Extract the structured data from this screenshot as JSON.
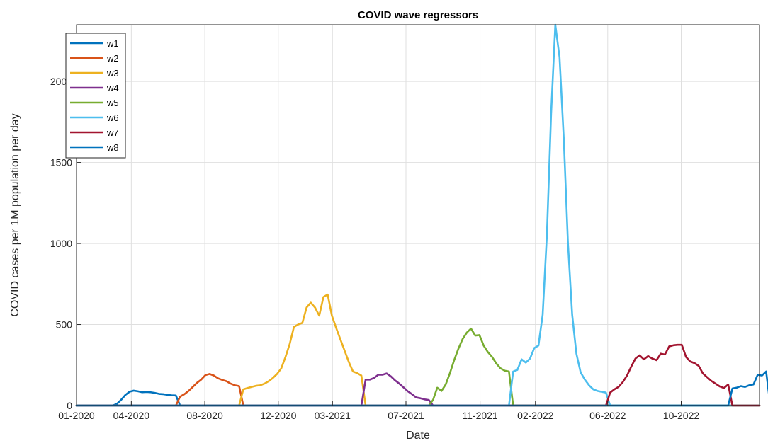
{
  "chart_data": {
    "type": "line",
    "title": "COVID wave regressors",
    "xlabel": "Date",
    "ylabel": "COVID cases per 1M population per day",
    "xlim": [
      "2020-01-01",
      "2023-02-08"
    ],
    "ylim": [
      0,
      2350
    ],
    "x_ticks": [
      "2020-01-01",
      "2020-04-01",
      "2020-08-01",
      "2020-12-01",
      "2021-03-01",
      "2021-07-01",
      "2021-11-01",
      "2022-02-01",
      "2022-06-01",
      "2022-10-01"
    ],
    "x_tick_labels": [
      "01-2020",
      "04-2020",
      "08-2020",
      "12-2020",
      "03-2021",
      "07-2021",
      "11-2021",
      "02-2022",
      "06-2022",
      "10-2022"
    ],
    "y_ticks": [
      0,
      500,
      1000,
      1500,
      2000
    ],
    "y_tick_labels": [
      "0",
      "500",
      "1000",
      "1500",
      "2000"
    ],
    "grid": true,
    "legend_position": "top-left",
    "series": [
      {
        "name": "w1",
        "color": "#0072BD",
        "points": [
          [
            "2020-01-01",
            0
          ],
          [
            "2020-03-01",
            0
          ],
          [
            "2020-03-08",
            10
          ],
          [
            "2020-03-15",
            35
          ],
          [
            "2020-03-22",
            65
          ],
          [
            "2020-03-29",
            85
          ],
          [
            "2020-04-05",
            92
          ],
          [
            "2020-04-12",
            88
          ],
          [
            "2020-04-19",
            82
          ],
          [
            "2020-04-26",
            84
          ],
          [
            "2020-05-03",
            82
          ],
          [
            "2020-05-10",
            78
          ],
          [
            "2020-05-17",
            72
          ],
          [
            "2020-05-24",
            70
          ],
          [
            "2020-05-31",
            66
          ],
          [
            "2020-06-07",
            63
          ],
          [
            "2020-06-14",
            62
          ],
          [
            "2020-06-21",
            0
          ],
          [
            "2023-02-08",
            0
          ]
        ]
      },
      {
        "name": "w2",
        "color": "#D95319",
        "points": [
          [
            "2020-01-01",
            0
          ],
          [
            "2020-06-14",
            0
          ],
          [
            "2020-06-21",
            55
          ],
          [
            "2020-06-28",
            70
          ],
          [
            "2020-07-05",
            90
          ],
          [
            "2020-07-12",
            115
          ],
          [
            "2020-07-19",
            140
          ],
          [
            "2020-07-26",
            160
          ],
          [
            "2020-08-02",
            188
          ],
          [
            "2020-08-09",
            195
          ],
          [
            "2020-08-16",
            185
          ],
          [
            "2020-08-23",
            168
          ],
          [
            "2020-08-30",
            158
          ],
          [
            "2020-09-06",
            150
          ],
          [
            "2020-09-13",
            135
          ],
          [
            "2020-09-20",
            125
          ],
          [
            "2020-09-27",
            120
          ],
          [
            "2020-10-04",
            0
          ],
          [
            "2023-02-08",
            0
          ]
        ]
      },
      {
        "name": "w3",
        "color": "#EDB120",
        "points": [
          [
            "2020-01-01",
            0
          ],
          [
            "2020-09-27",
            0
          ],
          [
            "2020-10-04",
            100
          ],
          [
            "2020-10-11",
            108
          ],
          [
            "2020-10-18",
            115
          ],
          [
            "2020-10-25",
            122
          ],
          [
            "2020-11-01",
            125
          ],
          [
            "2020-11-08",
            135
          ],
          [
            "2020-11-15",
            150
          ],
          [
            "2020-11-22",
            170
          ],
          [
            "2020-11-29",
            195
          ],
          [
            "2020-12-06",
            230
          ],
          [
            "2020-12-13",
            300
          ],
          [
            "2020-12-20",
            380
          ],
          [
            "2020-12-27",
            485
          ],
          [
            "2021-01-03",
            500
          ],
          [
            "2021-01-10",
            510
          ],
          [
            "2021-01-17",
            605
          ],
          [
            "2021-01-24",
            635
          ],
          [
            "2021-01-31",
            605
          ],
          [
            "2021-02-07",
            555
          ],
          [
            "2021-02-14",
            670
          ],
          [
            "2021-02-21",
            685
          ],
          [
            "2021-02-28",
            555
          ],
          [
            "2021-03-07",
            480
          ],
          [
            "2021-03-14",
            410
          ],
          [
            "2021-03-21",
            340
          ],
          [
            "2021-03-28",
            270
          ],
          [
            "2021-04-04",
            210
          ],
          [
            "2021-04-11",
            200
          ],
          [
            "2021-04-18",
            185
          ],
          [
            "2021-04-25",
            0
          ],
          [
            "2023-02-08",
            0
          ]
        ]
      },
      {
        "name": "w4",
        "color": "#7E2F8E",
        "points": [
          [
            "2020-01-01",
            0
          ],
          [
            "2021-04-18",
            0
          ],
          [
            "2021-04-25",
            160
          ],
          [
            "2021-05-02",
            160
          ],
          [
            "2021-05-09",
            170
          ],
          [
            "2021-05-16",
            190
          ],
          [
            "2021-05-23",
            190
          ],
          [
            "2021-05-30",
            198
          ],
          [
            "2021-06-06",
            180
          ],
          [
            "2021-06-13",
            155
          ],
          [
            "2021-06-20",
            135
          ],
          [
            "2021-06-27",
            112
          ],
          [
            "2021-07-04",
            88
          ],
          [
            "2021-07-11",
            70
          ],
          [
            "2021-07-18",
            50
          ],
          [
            "2021-07-25",
            45
          ],
          [
            "2021-08-01",
            38
          ],
          [
            "2021-08-08",
            34
          ],
          [
            "2021-08-15",
            0
          ],
          [
            "2023-02-08",
            0
          ]
        ]
      },
      {
        "name": "w5",
        "color": "#77AC30",
        "points": [
          [
            "2020-01-01",
            0
          ],
          [
            "2021-08-08",
            0
          ],
          [
            "2021-08-15",
            35
          ],
          [
            "2021-08-22",
            110
          ],
          [
            "2021-08-29",
            90
          ],
          [
            "2021-09-05",
            130
          ],
          [
            "2021-09-12",
            200
          ],
          [
            "2021-09-19",
            280
          ],
          [
            "2021-09-26",
            350
          ],
          [
            "2021-10-03",
            410
          ],
          [
            "2021-10-10",
            450
          ],
          [
            "2021-10-17",
            475
          ],
          [
            "2021-10-24",
            432
          ],
          [
            "2021-10-31",
            435
          ],
          [
            "2021-11-07",
            370
          ],
          [
            "2021-11-14",
            330
          ],
          [
            "2021-11-21",
            300
          ],
          [
            "2021-11-28",
            260
          ],
          [
            "2021-12-05",
            230
          ],
          [
            "2021-12-12",
            215
          ],
          [
            "2021-12-19",
            210
          ],
          [
            "2021-12-26",
            0
          ],
          [
            "2023-02-08",
            0
          ]
        ]
      },
      {
        "name": "w6",
        "color": "#4DBEEE",
        "points": [
          [
            "2020-01-01",
            0
          ],
          [
            "2021-12-19",
            0
          ],
          [
            "2021-12-26",
            210
          ],
          [
            "2022-01-02",
            220
          ],
          [
            "2022-01-09",
            285
          ],
          [
            "2022-01-16",
            265
          ],
          [
            "2022-01-23",
            290
          ],
          [
            "2022-01-30",
            355
          ],
          [
            "2022-02-06",
            370
          ],
          [
            "2022-02-13",
            560
          ],
          [
            "2022-02-20",
            1050
          ],
          [
            "2022-02-27",
            1800
          ],
          [
            "2022-03-06",
            2350
          ],
          [
            "2022-03-13",
            2150
          ],
          [
            "2022-03-20",
            1650
          ],
          [
            "2022-03-27",
            1000
          ],
          [
            "2022-04-03",
            560
          ],
          [
            "2022-04-10",
            320
          ],
          [
            "2022-04-17",
            205
          ],
          [
            "2022-04-24",
            160
          ],
          [
            "2022-05-01",
            125
          ],
          [
            "2022-05-08",
            100
          ],
          [
            "2022-05-15",
            90
          ],
          [
            "2022-05-22",
            85
          ],
          [
            "2022-05-29",
            80
          ],
          [
            "2022-06-05",
            0
          ],
          [
            "2023-02-08",
            0
          ]
        ]
      },
      {
        "name": "w7",
        "color": "#A2142F",
        "points": [
          [
            "2020-01-01",
            0
          ],
          [
            "2022-05-29",
            0
          ],
          [
            "2022-06-05",
            80
          ],
          [
            "2022-06-12",
            100
          ],
          [
            "2022-06-19",
            115
          ],
          [
            "2022-06-26",
            145
          ],
          [
            "2022-07-03",
            185
          ],
          [
            "2022-07-10",
            240
          ],
          [
            "2022-07-17",
            290
          ],
          [
            "2022-07-24",
            310
          ],
          [
            "2022-07-31",
            285
          ],
          [
            "2022-08-07",
            305
          ],
          [
            "2022-08-14",
            290
          ],
          [
            "2022-08-21",
            280
          ],
          [
            "2022-08-28",
            320
          ],
          [
            "2022-09-04",
            315
          ],
          [
            "2022-09-11",
            365
          ],
          [
            "2022-09-18",
            372
          ],
          [
            "2022-09-25",
            375
          ],
          [
            "2022-10-02",
            375
          ],
          [
            "2022-10-09",
            300
          ],
          [
            "2022-10-16",
            272
          ],
          [
            "2022-10-23",
            262
          ],
          [
            "2022-10-30",
            245
          ],
          [
            "2022-11-06",
            198
          ],
          [
            "2022-11-13",
            175
          ],
          [
            "2022-11-20",
            152
          ],
          [
            "2022-11-27",
            135
          ],
          [
            "2022-12-04",
            118
          ],
          [
            "2022-12-11",
            108
          ],
          [
            "2022-12-18",
            130
          ],
          [
            "2022-12-25",
            0
          ],
          [
            "2023-02-08",
            0
          ]
        ]
      },
      {
        "name": "w8",
        "color": "#0072BD",
        "points": [
          [
            "2020-01-01",
            0
          ],
          [
            "2022-12-18",
            0
          ],
          [
            "2022-12-25",
            105
          ],
          [
            "2023-01-01",
            110
          ],
          [
            "2023-01-08",
            120
          ],
          [
            "2023-01-15",
            115
          ],
          [
            "2023-01-22",
            125
          ],
          [
            "2023-01-29",
            130
          ],
          [
            "2023-02-05",
            190
          ],
          [
            "2023-02-12",
            185
          ],
          [
            "2023-02-19",
            210
          ],
          [
            "2023-02-26",
            0
          ]
        ]
      }
    ]
  }
}
